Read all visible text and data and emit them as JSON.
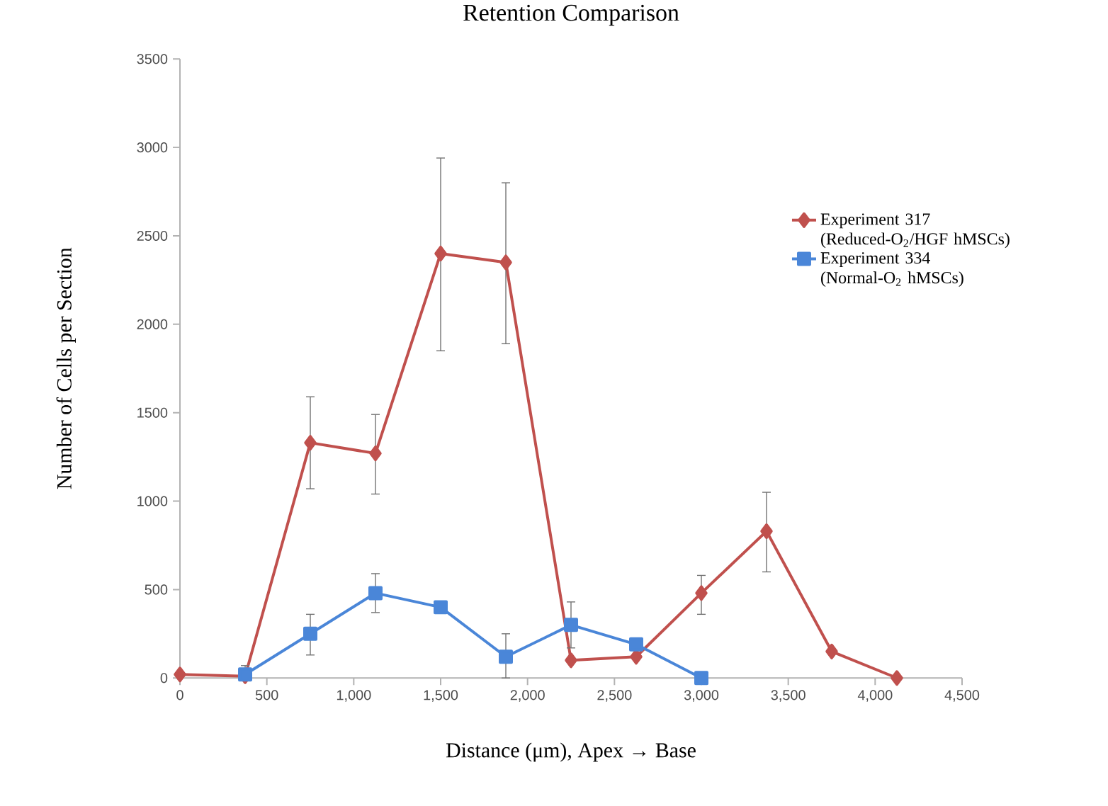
{
  "chart_data": {
    "type": "line",
    "title": "Retention Comparison",
    "xlabel": "Distance (μm),  Apex → Base",
    "ylabel": "Number of Cells per Section",
    "xlim": [
      0,
      4500
    ],
    "ylim": [
      0,
      3500
    ],
    "xticks": [
      0,
      500,
      {
        "value": 1000,
        "label": "1,000"
      },
      {
        "value": 1500,
        "label": "1,500"
      },
      {
        "value": 2000,
        "label": "2,000"
      },
      {
        "value": 2500,
        "label": "2,500"
      },
      {
        "value": 3000,
        "label": "3,000"
      },
      {
        "value": 3500,
        "label": "3,500"
      },
      {
        "value": 4000,
        "label": "4,000"
      },
      {
        "value": 4500,
        "label": "4,500"
      }
    ],
    "yticks": [
      0,
      500,
      1000,
      1500,
      2000,
      2500,
      3000,
      3500
    ],
    "grid": false,
    "legend": "right",
    "series": [
      {
        "name": "Experiment 317 (Reduced-O$_{2}$/HGF hMSCs)",
        "color": "#c0504d",
        "marker": "diamond",
        "x": [
          0,
          375,
          750,
          1125,
          1500,
          1875,
          2250,
          2625,
          3000,
          3375,
          3750,
          4125
        ],
        "values": [
          20,
          10,
          1330,
          1270,
          2400,
          2350,
          100,
          120,
          480,
          830,
          150,
          0
        ],
        "errors": [
          null,
          null,
          [
            1070,
            1590
          ],
          [
            1040,
            1490
          ],
          [
            1850,
            2940
          ],
          [
            1890,
            2800
          ],
          null,
          null,
          [
            360,
            580
          ],
          [
            600,
            1050
          ],
          null,
          null
        ]
      },
      {
        "name": "Experiment 334 (Normal-O$_{2}$ hMSCs)",
        "color": "#4a86d8",
        "marker": "square",
        "x": [
          375,
          750,
          1125,
          1500,
          1875,
          2250,
          2625,
          3000
        ],
        "values": [
          20,
          250,
          480,
          400,
          120,
          300,
          190,
          0
        ],
        "errors": [
          [
            0,
            70
          ],
          [
            130,
            360
          ],
          [
            370,
            590
          ],
          null,
          [
            0,
            250
          ],
          [
            170,
            430
          ],
          null,
          null
        ]
      }
    ]
  }
}
